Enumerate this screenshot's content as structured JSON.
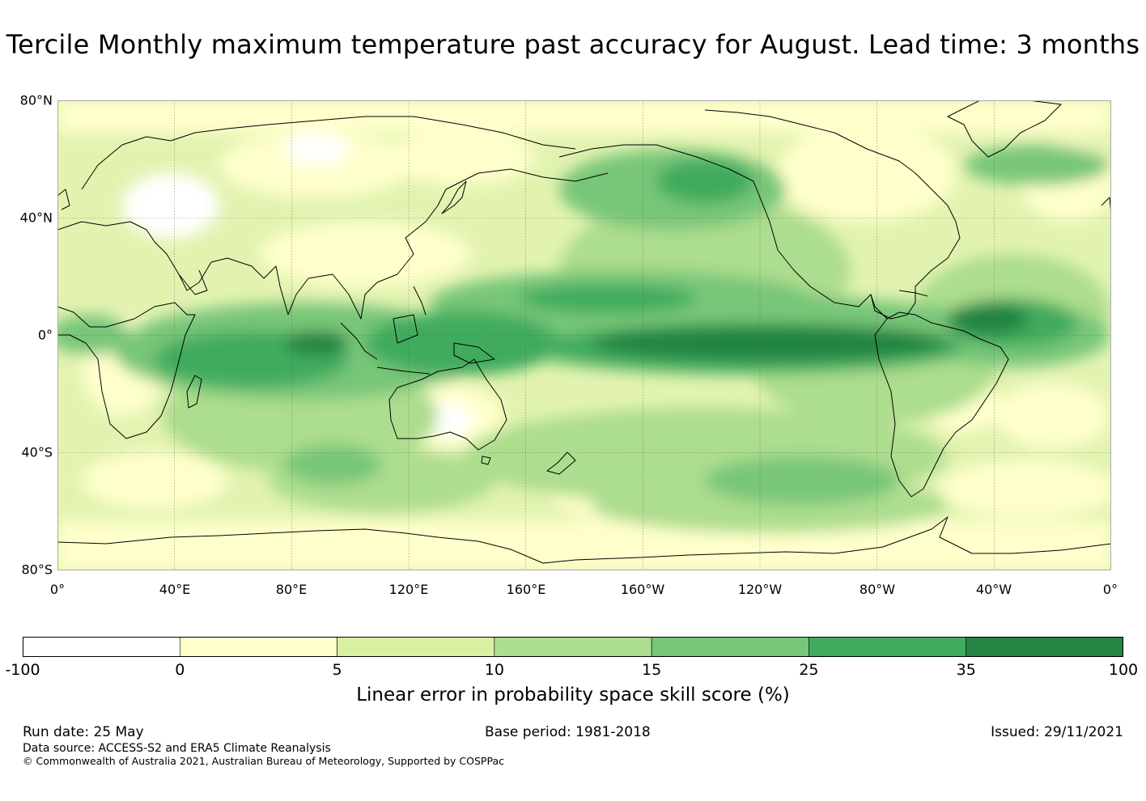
{
  "title": "Tercile Monthly maximum temperature past accuracy for August. Lead time: 3 months",
  "map": {
    "lat_ticks": [
      "80°N",
      "40°N",
      "0°",
      "40°S",
      "80°S"
    ],
    "lon_ticks": [
      "0°",
      "40°E",
      "80°E",
      "120°E",
      "160°E",
      "160°W",
      "120°W",
      "80°W",
      "40°W",
      "0°"
    ],
    "lat_range": [
      -80,
      80
    ],
    "lon_range": [
      0,
      360
    ],
    "projection": "equirectangular, Pacific-centred",
    "gridlines": true
  },
  "colorbar": {
    "levels": [
      "-100",
      "0",
      "5",
      "10",
      "15",
      "25",
      "35",
      "100"
    ],
    "colors": [
      "#ffffff",
      "#ffffcc",
      "#d9f0a3",
      "#addd8e",
      "#78c679",
      "#41ab5d",
      "#238443"
    ],
    "label": "Linear error in probability space skill score (%)"
  },
  "footer": {
    "run_date": "Run date: 25 May",
    "base_period": "Base period: 1981-2018",
    "issued": "Issued: 29/11/2021",
    "data_source": "Data source: ACCESS-S2 and ERA5 Climate Reanalysis",
    "copyright": "© Commonwealth of Australia 2021, Australian Bureau of Meteorology, Supported by COSPPac"
  }
}
